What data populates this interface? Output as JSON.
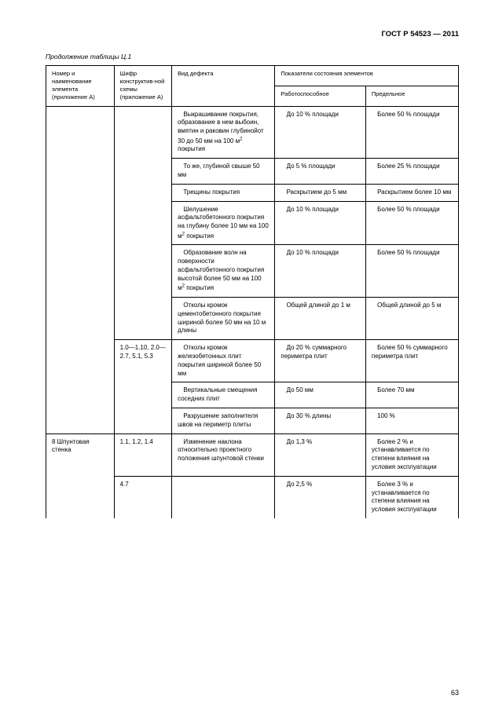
{
  "doc_header": "ГОСТ Р 54523 — 2011",
  "caption": "Продолжение таблицы Ц.1",
  "page_number": "63",
  "columns": {
    "number": "Номер и наименование элемента (приложение А)",
    "scheme": "Шифр конструктив-ной схемы (приложение А)",
    "defect": "Вид дефекта",
    "indicators": "Показатели состояния элементов",
    "operable": "Работоспособное",
    "limit": "Предельное"
  },
  "rows": [
    {
      "number": "",
      "scheme": "",
      "defect": "Выкрашивание покрытия, образование в нем выбоин, вмятин и раковин глубинойот 30 до 50 мм на 100 м² покрытия",
      "operable": "До 10 % площади",
      "limit": "Более 50 % площади",
      "nb_num": true,
      "nb_sch": true
    },
    {
      "number": "",
      "scheme": "",
      "defect": "То же, глубиной свыше 50 мм",
      "operable": "До 5 % площади",
      "limit": "Более 25 % площади",
      "nb_num": true,
      "nb_sch": true
    },
    {
      "number": "",
      "scheme": "",
      "defect": "Трещины покрытия",
      "operable": "Раскрытием до 5 мм",
      "limit": "Раскрытием более 10 мм",
      "nb_num": true,
      "nb_sch": true
    },
    {
      "number": "",
      "scheme": "",
      "defect": "Шелушение асфальтобетонного покрытия на глубину более 10 мм на 100 м² покрытия",
      "operable": "До 10 % площади",
      "limit": "Более 50 % площади",
      "nb_num": true,
      "nb_sch": true
    },
    {
      "number": "",
      "scheme": "",
      "defect": "Образование волн на поверхности асфальтобетонного покрытия высотой более 50 мм на 100 м² покрытия",
      "operable": "До 10 % площади",
      "limit": "Более 50 % площади",
      "nb_num": true,
      "nb_sch": true
    },
    {
      "number": "",
      "scheme": "",
      "defect": "Отколы кромок цементобетонного покрытия шириной более 50 мм на 10 м длины",
      "operable": "Общей длиной до 1 м",
      "limit": "Общей длиной до 5 м",
      "nb_num": true,
      "nb_sch": false
    },
    {
      "number": "",
      "scheme": "1.0—1.10, 2.0—2.7, 5.1, 5.3",
      "defect": "Отколы кромок железобетонных плит покрытия шириной более 50 мм",
      "operable": "До 20 % суммарного периметра плит",
      "limit": "Более 50 % суммарного периметра плит",
      "nb_num": true,
      "nb_sch": true
    },
    {
      "number": "",
      "scheme": "",
      "defect": "Вертикальные смещения соседних плит",
      "operable": "До 50 мм",
      "limit": "Более 70 мм",
      "nb_num": true,
      "nb_sch": true
    },
    {
      "number": "",
      "scheme": "",
      "defect": "Разрушение заполнителя швов на периметр плиты",
      "operable": "До 30 % длины",
      "limit": "100 %",
      "nb_num": false,
      "nb_sch": false
    },
    {
      "number": "8 Шпунтовая стенка",
      "scheme": "1.1, 1.2, 1.4",
      "defect": "Изменение наклона относительно проектного положения шпунтовой стенки",
      "operable": "До 1,3 %",
      "limit": "Более 2 % и устанавливается по степени влияния на условия эксплуатации",
      "nb_num": true,
      "nb_sch": false
    },
    {
      "number": "",
      "scheme": "4.7",
      "defect": "",
      "operable": "До 2,5 %",
      "limit": "Более 3 % и устанавливается по степени влияния на условия эксплуатации",
      "nb_num": true,
      "nb_sch": false
    }
  ]
}
